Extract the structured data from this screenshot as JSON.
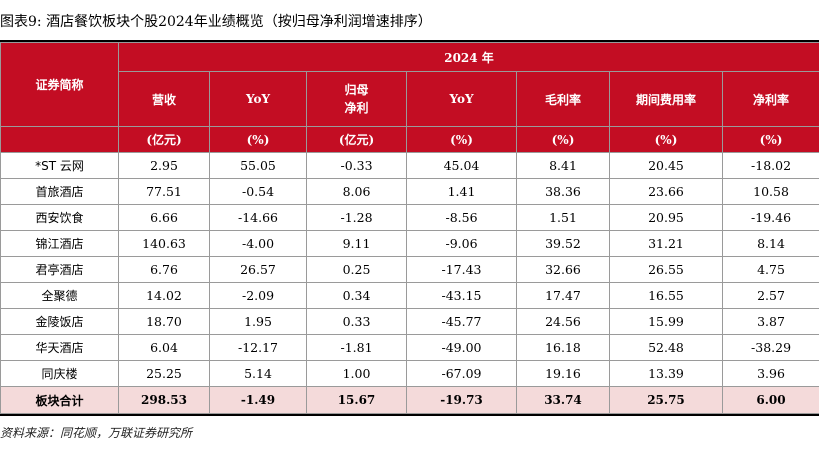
{
  "caption": "图表9:  酒店餐饮板块个股2024年业绩概览（按归母净利润增速排序）",
  "table": {
    "year_header": "2024 年",
    "first_col_header": "证券简称",
    "columns": [
      {
        "name": "营收",
        "unit": "(亿元)"
      },
      {
        "name": "YoY",
        "unit": "(%)"
      },
      {
        "name_line1": "归母",
        "name_line2": "净利",
        "unit": "(亿元)"
      },
      {
        "name": "YoY",
        "unit": "(%)"
      },
      {
        "name": "毛利率",
        "unit": "(%)"
      },
      {
        "name": "期间费用率",
        "unit": "(%)"
      },
      {
        "name": "净利率",
        "unit": "(%)"
      }
    ],
    "rows": [
      {
        "name": "*ST 云网",
        "cells": [
          "2.95",
          "55.05",
          "-0.33",
          "45.04",
          "8.41",
          "20.45",
          "-18.02"
        ]
      },
      {
        "name": "首旅酒店",
        "cells": [
          "77.51",
          "-0.54",
          "8.06",
          "1.41",
          "38.36",
          "23.66",
          "10.58"
        ]
      },
      {
        "name": "西安饮食",
        "cells": [
          "6.66",
          "-14.66",
          "-1.28",
          "-8.56",
          "1.51",
          "20.95",
          "-19.46"
        ]
      },
      {
        "name": "锦江酒店",
        "cells": [
          "140.63",
          "-4.00",
          "9.11",
          "-9.06",
          "39.52",
          "31.21",
          "8.14"
        ]
      },
      {
        "name": "君亭酒店",
        "cells": [
          "6.76",
          "26.57",
          "0.25",
          "-17.43",
          "32.66",
          "26.55",
          "4.75"
        ]
      },
      {
        "name": "全聚德",
        "cells": [
          "14.02",
          "-2.09",
          "0.34",
          "-43.15",
          "17.47",
          "16.55",
          "2.57"
        ]
      },
      {
        "name": "金陵饭店",
        "cells": [
          "18.70",
          "1.95",
          "0.33",
          "-45.77",
          "24.56",
          "15.99",
          "3.87"
        ]
      },
      {
        "name": "华天酒店",
        "cells": [
          "6.04",
          "-12.17",
          "-1.81",
          "-49.00",
          "16.18",
          "52.48",
          "-38.29"
        ]
      },
      {
        "name": "同庆楼",
        "cells": [
          "25.25",
          "5.14",
          "1.00",
          "-67.09",
          "19.16",
          "13.39",
          "3.96"
        ]
      }
    ],
    "total": {
      "name": "板块合计",
      "cells": [
        "298.53",
        "-1.49",
        "15.67",
        "-19.73",
        "33.74",
        "25.75",
        "6.00"
      ]
    }
  },
  "source": "资料来源：同花顺，万联证券研究所"
}
